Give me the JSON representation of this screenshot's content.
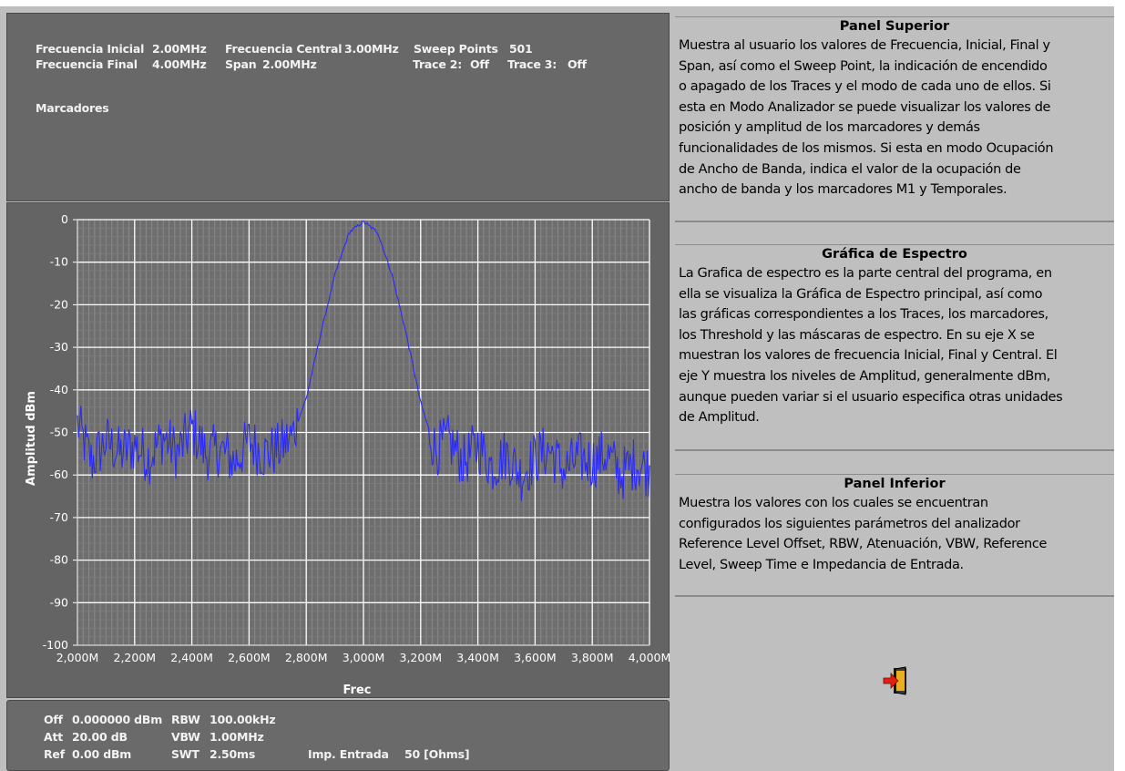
{
  "top_panel": {
    "freq_inicial_label": "Frecuencia Inicial",
    "freq_inicial_value": "2.00MHz",
    "freq_final_label": "Frecuencia Final",
    "freq_final_value": "4.00MHz",
    "freq_central_label": "Frecuencia Central",
    "freq_central_value": "3.00MHz",
    "span_label": "Span",
    "span_value": "2.00MHz",
    "sweep_points_label": "Sweep Points",
    "sweep_points_value": "501",
    "trace2_label": "Trace 2:",
    "trace2_value": "Off",
    "trace3_label": "Trace 3:",
    "trace3_value": "Off",
    "marcadores_label": "Marcadores"
  },
  "bottom_panel": {
    "off_label": "Off",
    "off_value": "0.000000 dBm",
    "att_label": "Att",
    "att_value": "20.00 dB",
    "ref_label": "Ref",
    "ref_value": "0.00 dBm",
    "rbw_label": "RBW",
    "rbw_value": "100.00kHz",
    "vbw_label": "VBW",
    "vbw_value": "1.00MHz",
    "swt_label": "SWT",
    "swt_value": "2.50ms",
    "imp_label": "Imp. Entrada",
    "imp_value": "50 [Ohms]"
  },
  "help": [
    {
      "title": "Panel Superior",
      "lines": [
        "Muestra al usuario los valores de Frecuencia, Inicial, Final y",
        "Span, así como  el Sweep Point, la indicación de encendido",
        "o apagado de los Traces y el modo de cada uno de ellos. Si",
        "esta en Modo Analizador se puede visualizar los valores de",
        "posición y amplitud de los marcadores y demás",
        "funcionalidades de los mismos. Si esta en modo Ocupación",
        "de Ancho de Banda, indica el valor de la ocupación de",
        "ancho de banda y los marcadores M1 y Temporales."
      ]
    },
    {
      "title": "Gráfica de Espectro",
      "lines": [
        "La Grafica de espectro es la parte central del programa, en",
        "ella se visualiza la Gráfica de Espectro principal, así como",
        "las gráficas correspondientes a los Traces, los marcadores,",
        "los Threshold y las máscaras de espectro. En su eje X se",
        "muestran los valores de frecuencia Inicial, Final y Central. El",
        "eje Y muestra los niveles de Amplitud, generalmente dBm,",
        "aunque pueden variar si el usuario especifica otras unidades",
        "de Amplitud."
      ]
    },
    {
      "title": "Panel Inferior",
      "lines": [
        "Muestra los valores con los cuales se encuentran",
        "configurados los siguientes parámetros del analizador",
        "Reference Level Offset, RBW, Atenuación, VBW, Reference",
        "Level, Sweep Time e Impedancia de Entrada."
      ]
    }
  ],
  "exit_icon": "exit-door-icon",
  "colors": {
    "trace": "#2a2aff",
    "plot_bg": "#6e6e6e",
    "panel_bg": "#686868",
    "major_grid": "#ffffff",
    "minor_grid": "#8a8a8a"
  },
  "chart_data": {
    "type": "line",
    "xlabel": "Frec",
    "ylabel": "Amplitud dBm",
    "x_unit": "MHz",
    "xlim": [
      2.0,
      4.0
    ],
    "ylim": [
      -100,
      0
    ],
    "x_ticks": [
      "2,000M",
      "2,200M",
      "2,400M",
      "2,600M",
      "2,800M",
      "3,000M",
      "3,200M",
      "3,400M",
      "3,600M",
      "3,800M",
      "4,000M"
    ],
    "y_ticks": [
      "0",
      "-10",
      "-20",
      "-30",
      "-40",
      "-50",
      "-60",
      "-70",
      "-80",
      "-90",
      "-100"
    ],
    "grid": true,
    "series": [
      {
        "x": [
          2.0,
          2.05,
          2.1,
          2.15,
          2.2,
          2.25,
          2.3,
          2.35,
          2.4,
          2.45,
          2.5,
          2.55,
          2.6,
          2.65,
          2.7,
          2.75,
          2.8,
          2.85,
          2.9,
          2.95,
          3.0,
          3.05,
          3.1,
          3.15,
          3.2,
          3.25,
          3.3,
          3.35,
          3.4,
          3.45,
          3.5,
          3.55,
          3.6,
          3.65,
          3.7,
          3.75,
          3.8,
          3.85,
          3.9,
          3.95,
          4.0
        ],
        "y": [
          -48,
          -57,
          -52,
          -55,
          -53,
          -56,
          -51,
          -55,
          -49,
          -55,
          -54,
          -57,
          -52,
          -55,
          -54,
          -51,
          -42,
          -27,
          -13,
          -3,
          -0.5,
          -3,
          -13,
          -27,
          -43,
          -54,
          -52,
          -57,
          -53,
          -58,
          -55,
          -60,
          -56,
          -54,
          -59,
          -56,
          -57,
          -55,
          -60,
          -57,
          -59
        ]
      }
    ]
  }
}
